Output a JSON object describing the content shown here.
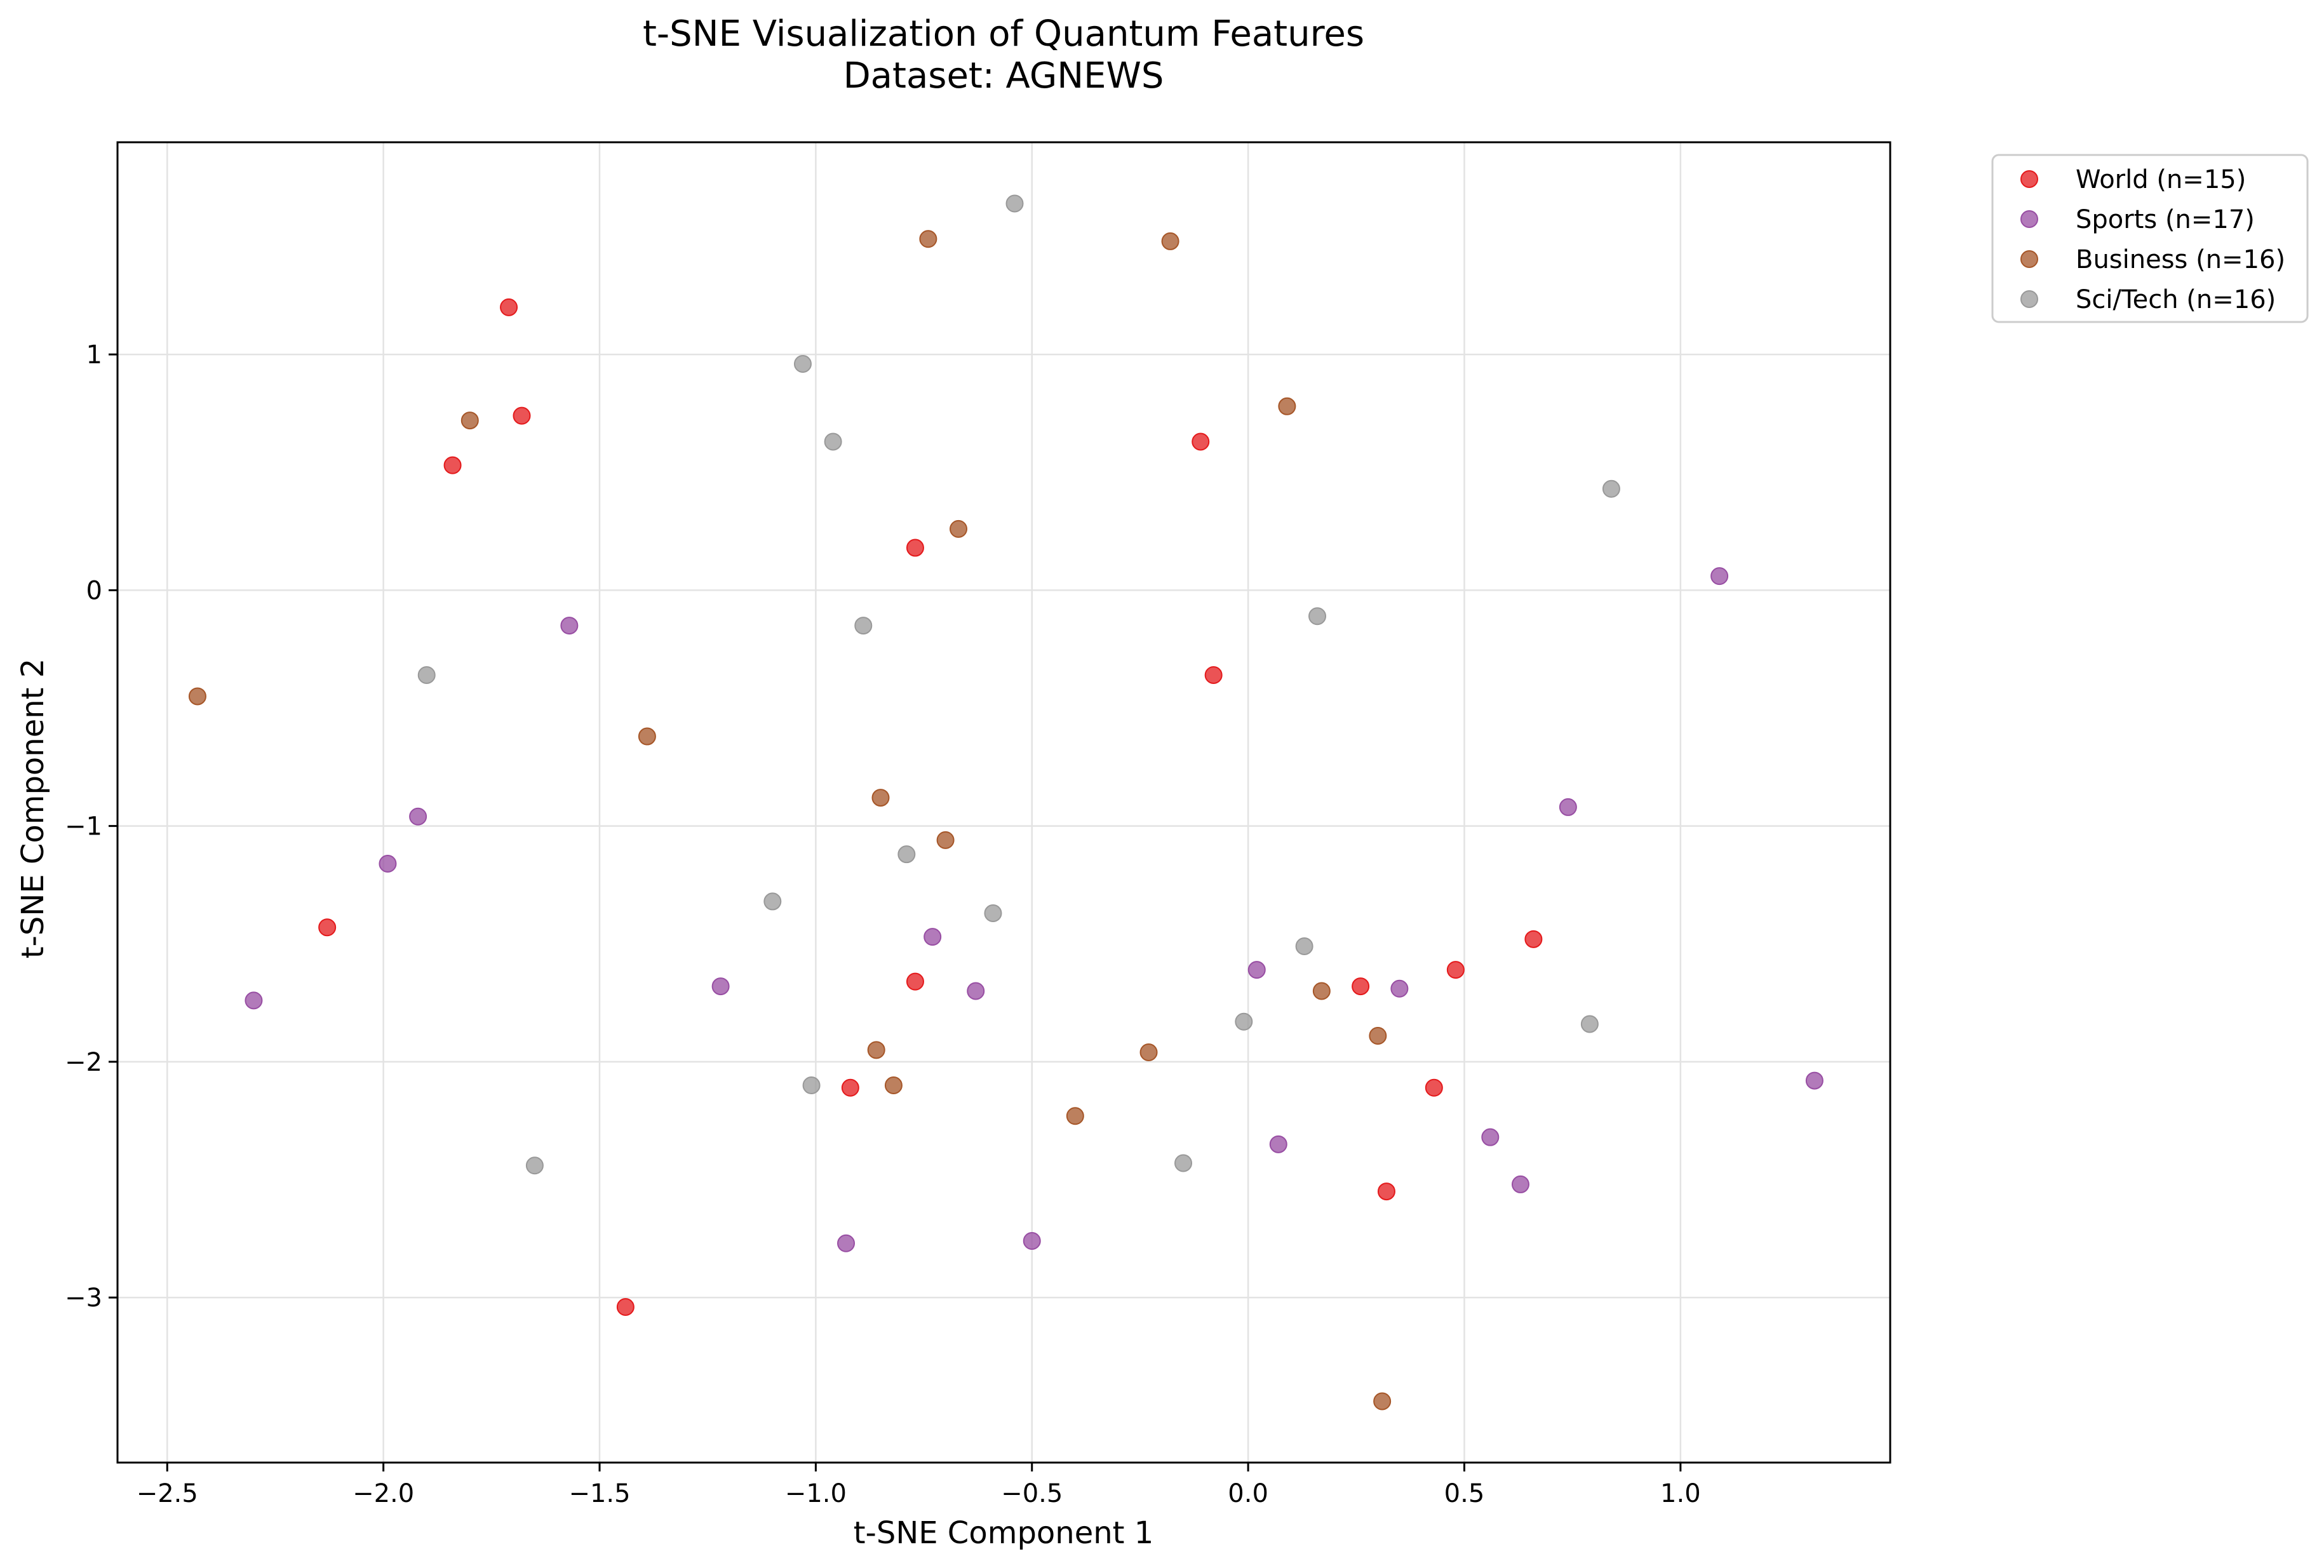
{
  "chart_data": {
    "type": "scatter",
    "title": "t-SNE Visualization of Quantum Features",
    "subtitle": "Dataset: AGNEWS",
    "xlabel": "t-SNE Component 1",
    "ylabel": "t-SNE Component 2",
    "xlim": [
      -2.615,
      1.485
    ],
    "ylim": [
      -3.7,
      1.9
    ],
    "x_ticks": [
      -2.5,
      -2.0,
      -1.5,
      -1.0,
      -0.5,
      0.0,
      0.5,
      1.0
    ],
    "x_tick_labels": [
      "−2.5",
      "−2.0",
      "−1.5",
      "−1.0",
      "−0.5",
      "0.0",
      "0.5",
      "1.0"
    ],
    "y_ticks": [
      -3,
      -2,
      -1,
      0,
      1
    ],
    "y_tick_labels": [
      "−3",
      "−2",
      "−1",
      "0",
      "1"
    ],
    "grid": true,
    "legend_position": "outside top-right",
    "series": [
      {
        "name": "World (n=15)",
        "color": "#e41a1c",
        "points": [
          [
            -1.71,
            1.2
          ],
          [
            -1.68,
            0.74
          ],
          [
            -1.84,
            0.53
          ],
          [
            -0.11,
            0.63
          ],
          [
            -0.77,
            0.18
          ],
          [
            -0.08,
            -0.36
          ],
          [
            -2.13,
            -1.43
          ],
          [
            -0.77,
            -1.66
          ],
          [
            0.26,
            -1.68
          ],
          [
            0.48,
            -1.61
          ],
          [
            0.66,
            -1.48
          ],
          [
            -0.92,
            -2.11
          ],
          [
            0.43,
            -2.11
          ],
          [
            0.32,
            -2.55
          ],
          [
            -1.44,
            -3.04
          ]
        ]
      },
      {
        "name": "Sports (n=17)",
        "color": "#984ea3",
        "points": [
          [
            -1.57,
            -0.15
          ],
          [
            1.09,
            0.06
          ],
          [
            -1.92,
            -0.96
          ],
          [
            -1.99,
            -1.16
          ],
          [
            -2.3,
            -1.74
          ],
          [
            -1.22,
            -1.68
          ],
          [
            -0.73,
            -1.47
          ],
          [
            -0.63,
            -1.7
          ],
          [
            0.02,
            -1.61
          ],
          [
            0.35,
            -1.69
          ],
          [
            0.74,
            -0.92
          ],
          [
            1.31,
            -2.08
          ],
          [
            0.07,
            -2.35
          ],
          [
            0.56,
            -2.32
          ],
          [
            0.63,
            -2.52
          ],
          [
            -0.93,
            -2.77
          ],
          [
            -0.5,
            -2.76
          ]
        ]
      },
      {
        "name": "Business (n=16)",
        "color": "#a65628",
        "points": [
          [
            -0.74,
            1.49
          ],
          [
            -0.18,
            1.48
          ],
          [
            -1.8,
            0.72
          ],
          [
            0.09,
            0.78
          ],
          [
            -0.67,
            0.26
          ],
          [
            -2.43,
            -0.45
          ],
          [
            -1.39,
            -0.62
          ],
          [
            -0.85,
            -0.88
          ],
          [
            -0.7,
            -1.06
          ],
          [
            0.17,
            -1.7
          ],
          [
            0.3,
            -1.89
          ],
          [
            -0.86,
            -1.95
          ],
          [
            -0.82,
            -2.1
          ],
          [
            -0.23,
            -1.96
          ],
          [
            -0.4,
            -2.23
          ],
          [
            0.31,
            -3.44
          ]
        ]
      },
      {
        "name": "Sci/Tech (n=16)",
        "color": "#999999",
        "points": [
          [
            -0.54,
            1.64
          ],
          [
            -1.03,
            0.96
          ],
          [
            -0.96,
            0.63
          ],
          [
            0.84,
            0.43
          ],
          [
            -0.89,
            -0.15
          ],
          [
            0.16,
            -0.11
          ],
          [
            -1.9,
            -0.36
          ],
          [
            -0.79,
            -1.12
          ],
          [
            -1.1,
            -1.32
          ],
          [
            -0.59,
            -1.37
          ],
          [
            0.13,
            -1.51
          ],
          [
            -0.01,
            -1.83
          ],
          [
            0.79,
            -1.84
          ],
          [
            -1.01,
            -2.1
          ],
          [
            -0.15,
            -2.43
          ],
          [
            -1.65,
            -2.44
          ]
        ]
      }
    ]
  }
}
